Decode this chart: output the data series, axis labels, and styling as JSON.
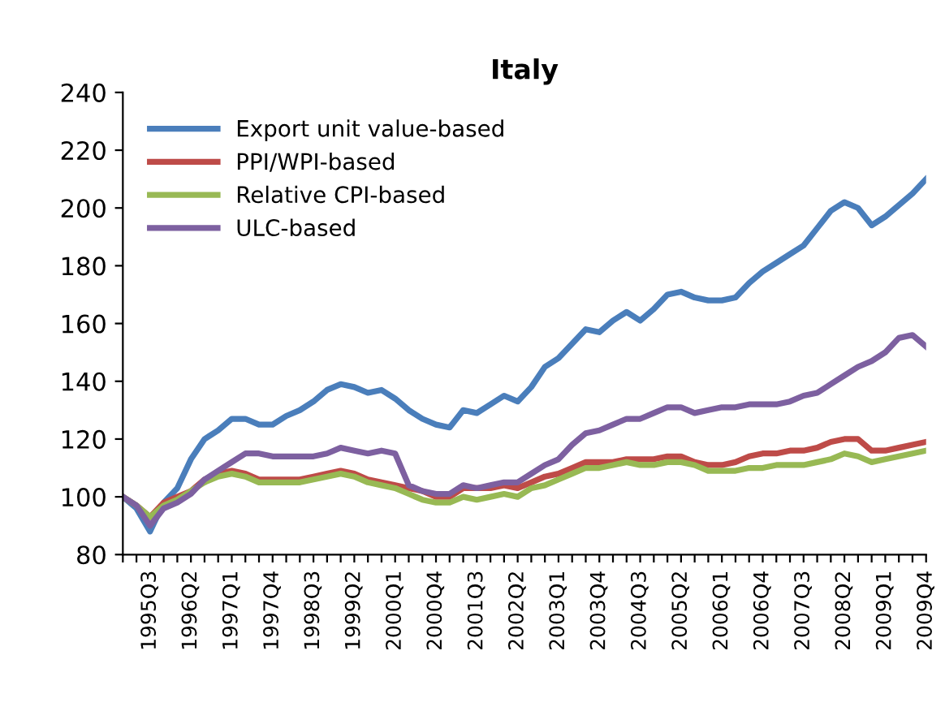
{
  "chart_data": {
    "type": "line",
    "title": "Italy",
    "categories": [
      null,
      null,
      "1995Q3",
      null,
      null,
      "1996Q2",
      null,
      null,
      "1997Q1",
      null,
      null,
      "1997Q4",
      null,
      null,
      "1998Q3",
      null,
      null,
      "1999Q2",
      null,
      null,
      "2000Q1",
      null,
      null,
      "2000Q4",
      null,
      null,
      "2001Q3",
      null,
      null,
      "2002Q2",
      null,
      null,
      "2003Q1",
      null,
      null,
      "2003Q4",
      null,
      null,
      "2004Q3",
      null,
      null,
      "2005Q2",
      null,
      null,
      "2006Q1",
      null,
      null,
      "2006Q4",
      null,
      null,
      "2007Q3",
      null,
      null,
      "2008Q2",
      null,
      null,
      "2009Q1",
      null,
      null,
      "2009Q4"
    ],
    "series": [
      {
        "name": "Export unit value-based",
        "color": "#4a7ebb",
        "values": [
          100,
          96,
          88,
          98,
          103,
          113,
          120,
          123,
          127,
          127,
          125,
          125,
          128,
          130,
          133,
          137,
          139,
          138,
          136,
          137,
          134,
          130,
          127,
          125,
          124,
          130,
          129,
          132,
          135,
          133,
          138,
          145,
          148,
          153,
          158,
          157,
          161,
          164,
          161,
          165,
          170,
          171,
          169,
          168,
          168,
          169,
          174,
          178,
          181,
          184,
          187,
          193,
          199,
          202,
          200,
          194,
          197,
          201,
          205,
          210
        ]
      },
      {
        "name": "PPI/WPI-based",
        "color": "#be4b48",
        "values": [
          100,
          97,
          93,
          98,
          100,
          102,
          106,
          108,
          109,
          108,
          106,
          106,
          106,
          106,
          107,
          108,
          109,
          108,
          106,
          105,
          104,
          103,
          102,
          100,
          100,
          103,
          103,
          103,
          104,
          103,
          105,
          107,
          108,
          110,
          112,
          112,
          112,
          113,
          113,
          113,
          114,
          114,
          112,
          111,
          111,
          112,
          114,
          115,
          115,
          116,
          116,
          117,
          119,
          120,
          120,
          116,
          116,
          117,
          118,
          119
        ]
      },
      {
        "name": "Relative CPI-based",
        "color": "#98b954",
        "values": [
          100,
          97,
          93,
          97,
          99,
          102,
          105,
          107,
          108,
          107,
          105,
          105,
          105,
          105,
          106,
          107,
          108,
          107,
          105,
          104,
          103,
          101,
          99,
          98,
          98,
          100,
          99,
          100,
          101,
          100,
          103,
          104,
          106,
          108,
          110,
          110,
          111,
          112,
          111,
          111,
          112,
          112,
          111,
          109,
          109,
          109,
          110,
          110,
          111,
          111,
          111,
          112,
          113,
          115,
          114,
          112,
          113,
          114,
          115,
          116
        ]
      },
      {
        "name": "ULC-based",
        "color": "#7d60a0",
        "values": [
          100,
          97,
          90,
          96,
          98,
          101,
          106,
          109,
          112,
          115,
          115,
          114,
          114,
          114,
          114,
          115,
          117,
          116,
          115,
          116,
          115,
          104,
          102,
          101,
          101,
          104,
          103,
          104,
          105,
          105,
          108,
          111,
          113,
          118,
          122,
          123,
          125,
          127,
          127,
          129,
          131,
          131,
          129,
          130,
          131,
          131,
          132,
          132,
          132,
          133,
          135,
          136,
          139,
          142,
          145,
          147,
          150,
          155,
          156,
          152
        ]
      }
    ],
    "ylim": [
      80,
      240
    ],
    "yticks": [
      80,
      100,
      120,
      140,
      160,
      180,
      200,
      220,
      240
    ],
    "grid": false,
    "legend": "top left",
    "marker": "none",
    "line_style": "solid"
  }
}
